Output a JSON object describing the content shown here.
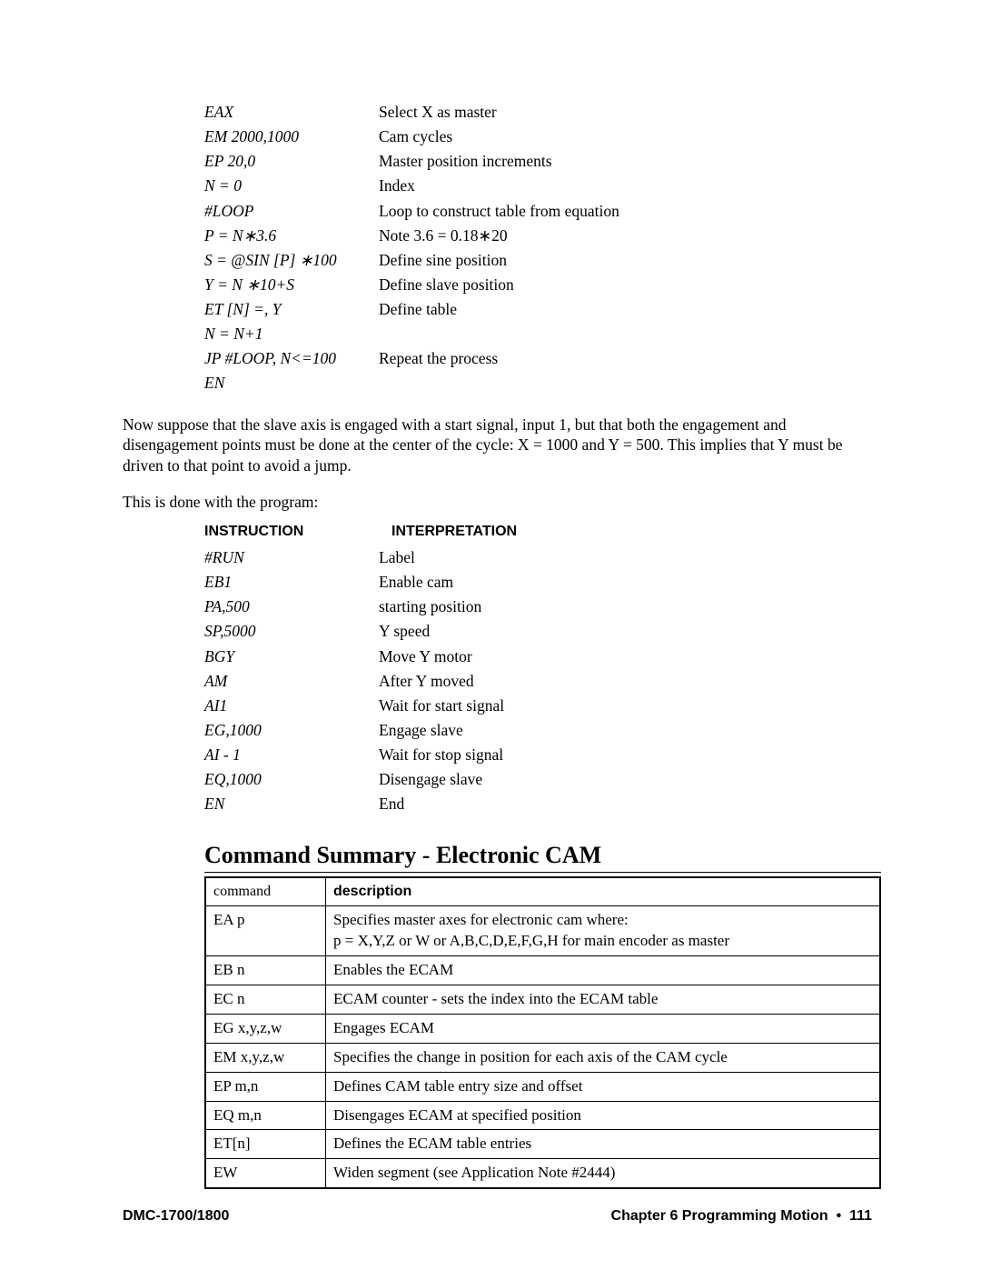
{
  "code1": {
    "rows": [
      {
        "instr": "EAX",
        "interp": "Select X as master"
      },
      {
        "instr": "EM 2000,1000",
        "interp": "Cam cycles"
      },
      {
        "instr": "EP 20,0",
        "interp": "Master position increments"
      },
      {
        "instr": "N = 0",
        "interp": "Index"
      },
      {
        "instr": "#LOOP",
        "interp": "Loop to construct table from equation"
      },
      {
        "instr": "P = N∗3.6",
        "interp": "Note  3.6 = 0.18∗20"
      },
      {
        "instr": "S = @SIN [P] ∗100",
        "interp": "Define sine position"
      },
      {
        "instr": "Y = N ∗10+S",
        "interp": "Define slave position"
      },
      {
        "instr": "ET [N] =, Y",
        "interp": "Define table"
      },
      {
        "instr": "N = N+1",
        "interp": ""
      },
      {
        "instr": "JP #LOOP, N<=100",
        "interp": "Repeat the process"
      },
      {
        "instr": "EN",
        "interp": ""
      }
    ]
  },
  "para1": "Now suppose that the slave axis is engaged with a start signal, input 1, but that both the engagement and disengagement points must be done at the center of the cycle:  X = 1000 and Y = 500.  This implies that Y must be driven to that point to avoid a jump.",
  "para2": "This is done with the program:",
  "code2": {
    "header_col1": "INSTRUCTION",
    "header_col2": "INTERPRETATION",
    "rows": [
      {
        "instr": "#RUN",
        "interp": "Label"
      },
      {
        "instr": "EB1",
        "interp": "Enable cam"
      },
      {
        "instr": "PA,500",
        "interp": " starting position"
      },
      {
        "instr": "SP,5000",
        "interp": "Y speed"
      },
      {
        "instr": "BGY",
        "interp": "Move Y motor"
      },
      {
        "instr": "AM",
        "interp": "After Y moved"
      },
      {
        "instr": "AI1",
        "interp": "Wait for start signal"
      },
      {
        "instr": "EG,1000",
        "interp": "Engage slave"
      },
      {
        "instr": "AI - 1",
        "interp": "Wait for stop signal"
      },
      {
        "instr": "EQ,1000",
        "interp": "Disengage slave"
      },
      {
        "instr": "EN",
        "interp": "End"
      }
    ]
  },
  "section_heading": "Command Summary - Electronic CAM",
  "cmd_table": {
    "header": {
      "c1": "command",
      "c2": "description"
    },
    "rows": [
      {
        "c1": "EA p",
        "c2": "Specifies master axes for electronic cam where:\np = X,Y,Z or W or A,B,C,D,E,F,G,H for main encoder as master"
      },
      {
        "c1": "EB n",
        "c2": "Enables the ECAM"
      },
      {
        "c1": "EC n",
        "c2": "ECAM counter - sets the index into the ECAM table"
      },
      {
        "c1": "EG x,y,z,w",
        "c2": "Engages ECAM"
      },
      {
        "c1": "EM x,y,z,w",
        "c2": "Specifies the change in position for each axis of the CAM cycle"
      },
      {
        "c1": "EP m,n",
        "c2": "Defines CAM table entry size and offset"
      },
      {
        "c1": "EQ m,n",
        "c2": "Disengages ECAM at specified position"
      },
      {
        "c1": "ET[n]",
        "c2": "Defines the ECAM table entries"
      },
      {
        "c1": "EW",
        "c2": "Widen segment (see Application Note #2444)"
      }
    ]
  },
  "footer": {
    "left": "DMC-1700/1800",
    "right_chapter": "Chapter 6  Programming Motion",
    "right_page": "111"
  }
}
